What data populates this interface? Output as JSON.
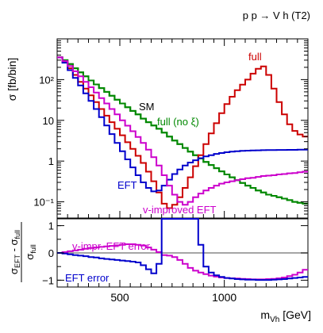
{
  "process_label": "p p → V h (T2)",
  "chart_data": [
    {
      "type": "line",
      "step": true,
      "title": "p p → V h (T2)",
      "xlabel": "m_Vh [GeV]",
      "ylabel": "σ [fb/bin]",
      "yscale": "log",
      "xlim": [
        200,
        1400
      ],
      "ylim": [
        0.04,
        1000
      ],
      "grid": false,
      "x_bin_edges": [
        200,
        225,
        250,
        275,
        300,
        325,
        350,
        375,
        400,
        425,
        450,
        475,
        500,
        525,
        550,
        575,
        600,
        625,
        650,
        675,
        700,
        725,
        750,
        775,
        800,
        825,
        850,
        875,
        900,
        925,
        950,
        975,
        1000,
        1025,
        1050,
        1075,
        1100,
        1125,
        1150,
        1175,
        1200,
        1225,
        1250,
        1275,
        1300,
        1325,
        1350,
        1375,
        1400
      ],
      "series": [
        {
          "name": "SM",
          "color": "#008800",
          "values": [
            350,
            300,
            240,
            190,
            150,
            120,
            95,
            76,
            62,
            50,
            40,
            32,
            26,
            21,
            17,
            14,
            11,
            9,
            7.5,
            6.2,
            5.0,
            4.0,
            3.2,
            2.6,
            2.1,
            1.7,
            1.4,
            1.15,
            0.95,
            0.8,
            0.67,
            0.56,
            0.47,
            0.4,
            0.34,
            0.29,
            0.25,
            0.22,
            0.19,
            0.17,
            0.15,
            0.14,
            0.13,
            0.12,
            0.11,
            0.1,
            0.095,
            0.09
          ]
        },
        {
          "name": "full (no ξ)",
          "color": "#008800",
          "values": [
            350,
            300,
            240,
            190,
            150,
            120,
            95,
            76,
            62,
            50,
            40,
            32,
            26,
            21,
            17,
            14,
            11,
            9,
            7.5,
            6.2,
            5.0,
            4.0,
            3.2,
            2.6,
            2.1,
            1.7,
            1.4,
            1.15,
            0.95,
            0.8,
            0.67,
            0.56,
            0.47,
            0.4,
            0.34,
            0.29,
            0.25,
            0.22,
            0.19,
            0.17,
            0.15,
            0.14,
            0.13,
            0.12,
            0.11,
            0.1,
            0.095,
            0.09
          ]
        },
        {
          "name": "full",
          "color": "#cc0000",
          "values": [
            350,
            270,
            190,
            130,
            88,
            60,
            41,
            28,
            19,
            13,
            9,
            6.2,
            4.3,
            2.9,
            2.0,
            1.35,
            0.9,
            0.55,
            0.32,
            0.17,
            0.09,
            0.07,
            0.085,
            0.13,
            0.22,
            0.4,
            0.75,
            1.4,
            2.6,
            4.8,
            8.5,
            15,
            25,
            38,
            55,
            75,
            100,
            140,
            185,
            210,
            130,
            60,
            28,
            14,
            8,
            5.5,
            4.5,
            4.0
          ]
        },
        {
          "name": "EFT",
          "color": "#0000cc",
          "values": [
            350,
            260,
            170,
            110,
            72,
            46,
            30,
            19,
            12,
            7.5,
            4.6,
            2.8,
            1.75,
            1.1,
            0.7,
            0.45,
            0.3,
            0.22,
            0.18,
            0.19,
            0.25,
            0.35,
            0.48,
            0.62,
            0.78,
            0.92,
            1.05,
            1.18,
            1.3,
            1.4,
            1.5,
            1.58,
            1.65,
            1.7,
            1.74,
            1.78,
            1.8,
            1.82,
            1.84,
            1.85,
            1.86,
            1.87,
            1.88,
            1.88,
            1.89,
            1.89,
            1.9,
            1.9
          ]
        },
        {
          "name": "v-improved EFT",
          "color": "#cc00cc",
          "values": [
            350,
            285,
            215,
            160,
            120,
            88,
            65,
            48,
            35,
            26,
            19,
            14,
            10,
            7.4,
            5.4,
            3.9,
            2.8,
            1.9,
            1.25,
            0.78,
            0.45,
            0.25,
            0.15,
            0.1,
            0.085,
            0.1,
            0.13,
            0.16,
            0.19,
            0.22,
            0.25,
            0.28,
            0.3,
            0.32,
            0.34,
            0.36,
            0.38,
            0.39,
            0.41,
            0.43,
            0.44,
            0.45,
            0.47,
            0.48,
            0.5,
            0.51,
            0.53,
            0.55
          ]
        }
      ],
      "annotations": [
        "SM",
        "full (no ξ)",
        "full",
        "EFT",
        "v-improved EFT"
      ]
    },
    {
      "type": "line",
      "step": true,
      "ylabel": "(σ_EFT - σ_full) / σ_full",
      "xlim": [
        200,
        1400
      ],
      "ylim": [
        -1.25,
        1.25
      ],
      "yticks": [
        -1,
        0,
        1
      ],
      "xticks": [
        500,
        1000
      ],
      "reference_line_y": 0,
      "series": [
        {
          "name": "v-impr. EFT error",
          "color": "#cc00cc",
          "values": [
            0,
            0.03,
            0.06,
            0.09,
            0.12,
            0.15,
            0.18,
            0.2,
            0.22,
            0.24,
            0.26,
            0.28,
            0.3,
            0.32,
            0.32,
            0.3,
            0.27,
            0.2,
            0.12,
            0.03,
            -0.08,
            -0.1,
            -0.15,
            -0.26,
            -0.4,
            -0.55,
            -0.65,
            -0.72,
            -0.78,
            -0.83,
            -0.87,
            -0.9,
            -0.92,
            -0.93,
            -0.94,
            -0.95,
            -0.96,
            -0.97,
            -0.97,
            -0.97,
            -0.96,
            -0.95,
            -0.93,
            -0.9,
            -0.85,
            -0.8,
            -0.72,
            -0.62
          ]
        },
        {
          "name": "EFT error",
          "color": "#0000cc",
          "values": [
            0,
            -0.02,
            -0.05,
            -0.08,
            -0.1,
            -0.12,
            -0.15,
            -0.17,
            -0.2,
            -0.22,
            -0.24,
            -0.26,
            -0.28,
            -0.3,
            -0.32,
            -0.35,
            -0.45,
            -0.6,
            -0.75,
            -0.4,
            1.3,
            1.3,
            1.3,
            1.3,
            1.3,
            1.3,
            1.3,
            0.3,
            -0.5,
            -0.72,
            -0.82,
            -0.88,
            -0.92,
            -0.94,
            -0.96,
            -0.97,
            -0.98,
            -0.98,
            -0.99,
            -0.99,
            -0.99,
            -0.98,
            -0.97,
            -0.96,
            -0.94,
            -0.92,
            -0.9,
            -0.88
          ]
        }
      ],
      "annotations": [
        "v-impr. EFT error",
        "EFT error"
      ]
    }
  ],
  "axes": {
    "top_y_ticks": [
      "10²",
      "10",
      "1",
      "10⁻¹"
    ],
    "bottom_y_ticks": [
      "1",
      "0",
      "−1"
    ],
    "x_ticks": [
      "500",
      "1000"
    ]
  }
}
